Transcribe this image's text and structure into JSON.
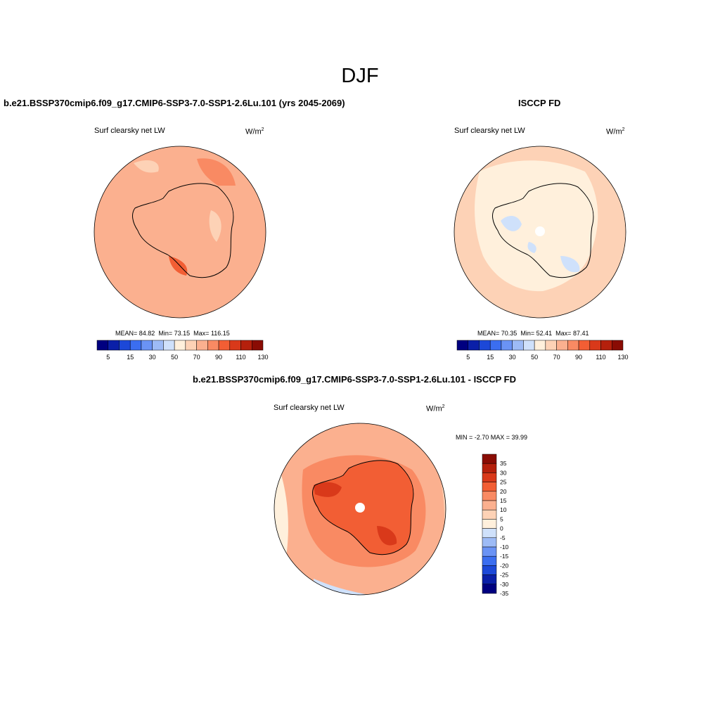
{
  "figure": {
    "title": "DJF",
    "panels": [
      {
        "title": "b.e21.BSSP370cmip6.f09_g17.CMIP6-SSP3-7.0-SSP1-2.6Lu.101 (yrs 2045-2069)",
        "variable": "Surf clearsky net LW",
        "units_base": "W/m",
        "units_exp": "2",
        "stats": {
          "mean_label": "MEAN=",
          "mean": "84.82",
          "min_label": "Min=",
          "min": "73.15",
          "max_label": "Max=",
          "max": "116.15"
        }
      },
      {
        "title": "ISCCP FD",
        "variable": "Surf clearsky net LW",
        "units_base": "W/m",
        "units_exp": "2",
        "stats": {
          "mean_label": "MEAN=",
          "mean": "70.35",
          "min_label": "Min=",
          "min": "52.41",
          "max_label": "Max=",
          "max": "87.41"
        }
      },
      {
        "title": "b.e21.BSSP370cmip6.f09_g17.CMIP6-SSP3-7.0-SSP1-2.6Lu.101 - ISCCP FD",
        "variable": "Surf clearsky net LW",
        "units_base": "W/m",
        "units_exp": "2",
        "stats_text": "MIN =  -2.70 MAX =  39.99"
      }
    ]
  },
  "colorbar_abs": {
    "colors": [
      "#000080",
      "#0a1fa8",
      "#1c48d8",
      "#3b6ef0",
      "#6a93f5",
      "#9dbbf6",
      "#cfe1fb",
      "#fff0dc",
      "#fdd2b6",
      "#fbb08f",
      "#f98a63",
      "#f25e34",
      "#d9391a",
      "#b5200c",
      "#8a0c04"
    ],
    "tick_labels": [
      "5",
      "15",
      "30",
      "50",
      "70",
      "90",
      "110",
      "130"
    ]
  },
  "colorbar_diff": {
    "colors": [
      "#000080",
      "#0a1fa8",
      "#1c48d8",
      "#3b6ef0",
      "#6a93f5",
      "#9dbbf6",
      "#cfe1fb",
      "#fff0dc",
      "#fdd2b6",
      "#fbb08f",
      "#f98a63",
      "#f25e34",
      "#d9391a",
      "#b5200c",
      "#8a0c04"
    ],
    "tick_labels": [
      "-35",
      "-30",
      "-25",
      "-20",
      "-15",
      "-10",
      "-5",
      "0",
      "5",
      "10",
      "15",
      "20",
      "25",
      "30",
      "35"
    ]
  }
}
